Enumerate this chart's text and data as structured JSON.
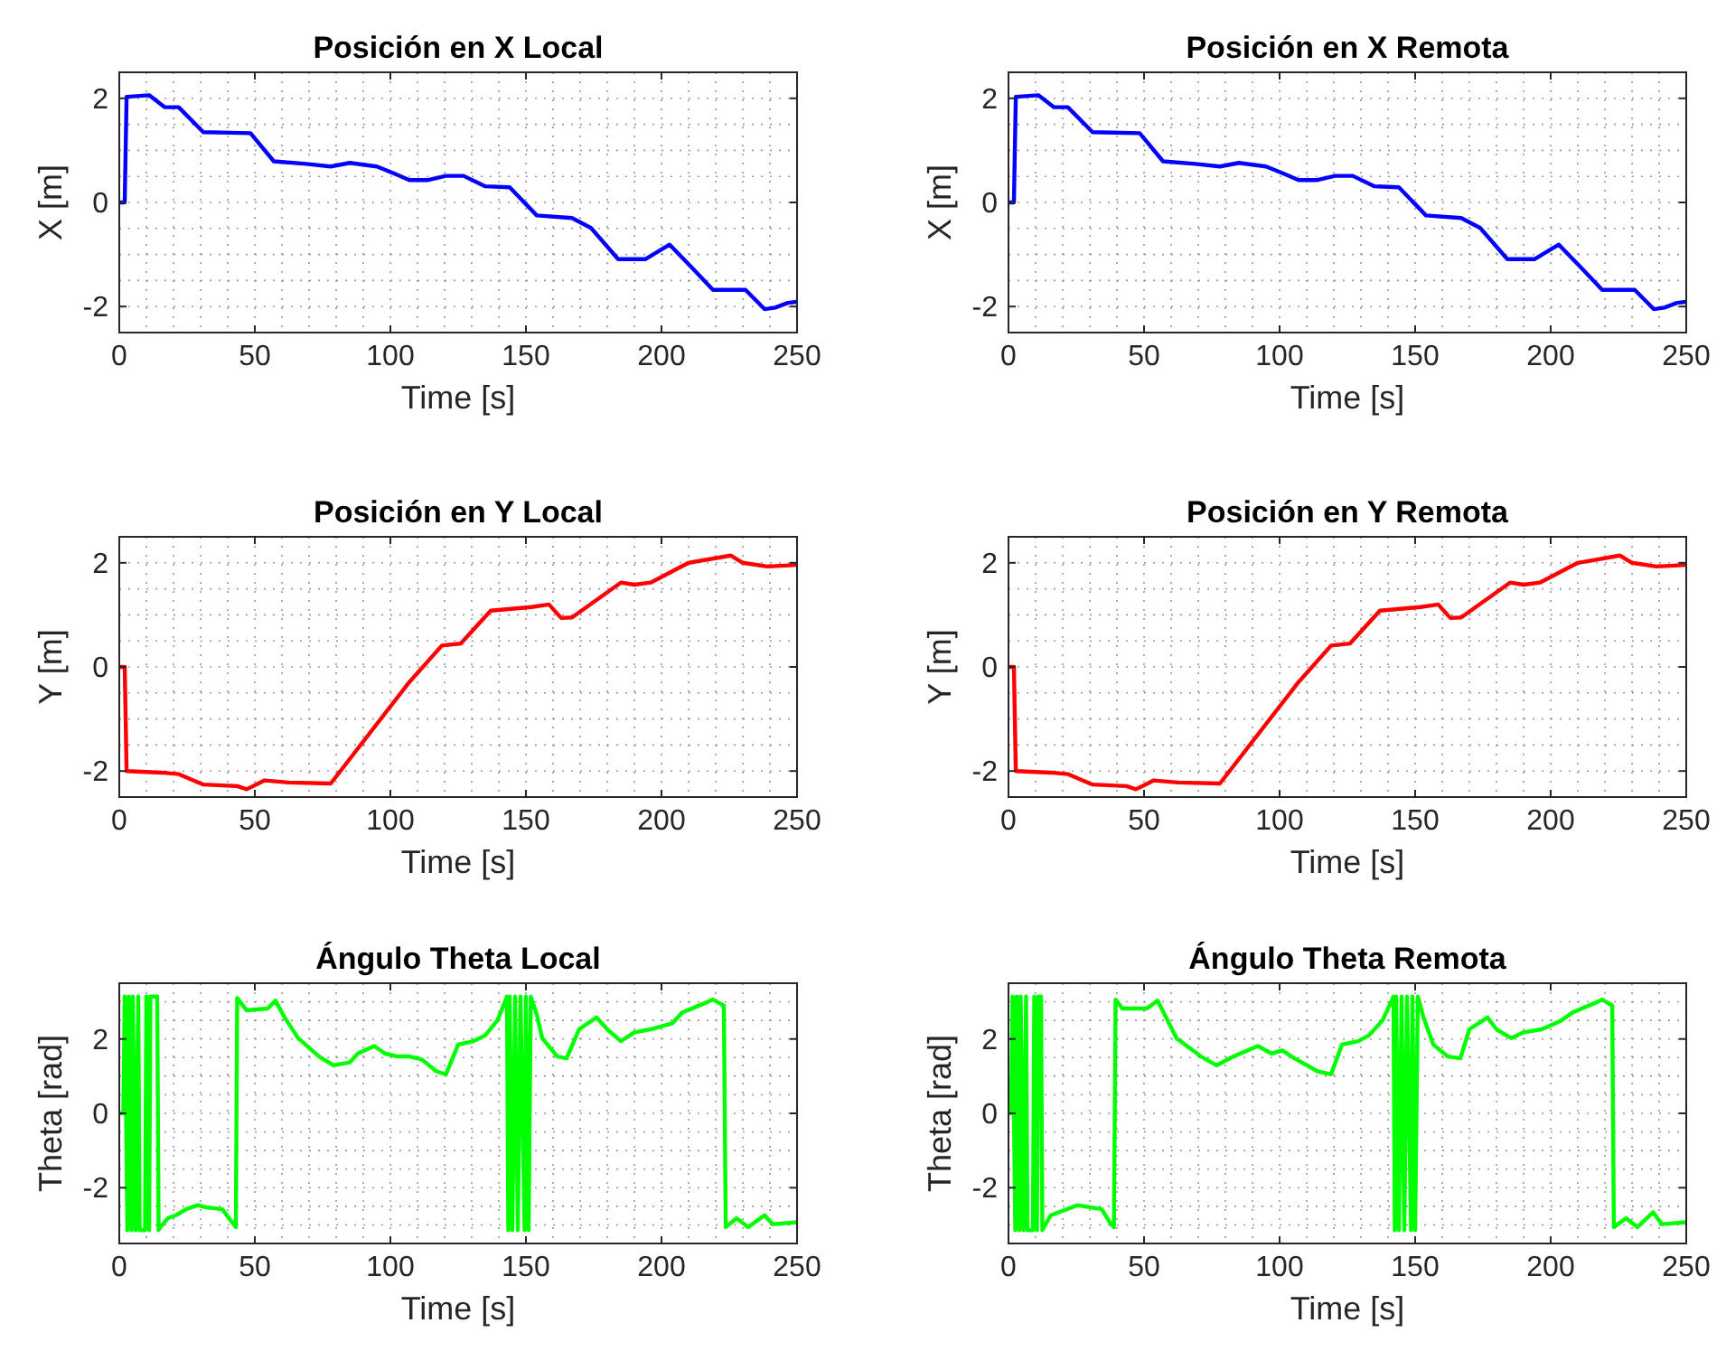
{
  "chart_data": [
    {
      "type": "line",
      "title": "Posición en X Local",
      "xlabel": "Time [s]",
      "ylabel": "X [m]",
      "xlim": [
        0,
        250
      ],
      "ylim": [
        -2.5,
        2.5
      ],
      "xticks": [
        0,
        50,
        100,
        150,
        200,
        250
      ],
      "yticks": [
        -2,
        0,
        2
      ],
      "grid": true,
      "series": [
        {
          "color": "#0000ff",
          "x": [
            0,
            2,
            2.7,
            11,
            16.7,
            21.9,
            31,
            48.4,
            57,
            69,
            78,
            85,
            95,
            101.6,
            107,
            114,
            120.5,
            127,
            135,
            144,
            154,
            167,
            174,
            184,
            194,
            203,
            211,
            219,
            231,
            238,
            242,
            246.6,
            250
          ],
          "values": [
            0,
            0,
            2.03,
            2.06,
            1.83,
            1.83,
            1.35,
            1.33,
            0.79,
            0.74,
            0.69,
            0.76,
            0.69,
            0.55,
            0.43,
            0.43,
            0.51,
            0.51,
            0.31,
            0.29,
            -0.25,
            -0.3,
            -0.49,
            -1.09,
            -1.09,
            -0.81,
            -1.24,
            -1.68,
            -1.68,
            -2.05,
            -2.02,
            -1.93,
            -1.91
          ]
        }
      ]
    },
    {
      "type": "line",
      "title": "Posición en X Remota",
      "xlabel": "Time [s]",
      "ylabel": "X [m]",
      "xlim": [
        0,
        250
      ],
      "ylim": [
        -2.5,
        2.5
      ],
      "xticks": [
        0,
        50,
        100,
        150,
        200,
        250
      ],
      "yticks": [
        -2,
        0,
        2
      ],
      "grid": true,
      "series": [
        {
          "color": "#0000ff",
          "x": [
            0,
            2,
            2.7,
            11,
            16.7,
            21.9,
            31,
            48.4,
            57,
            69,
            78,
            85,
            95,
            101.6,
            107,
            114,
            120.5,
            127,
            135,
            144,
            154,
            167,
            174,
            184,
            194,
            203,
            211,
            219,
            231,
            238,
            242,
            246.6,
            250
          ],
          "values": [
            0,
            0,
            2.03,
            2.06,
            1.83,
            1.83,
            1.35,
            1.33,
            0.79,
            0.74,
            0.69,
            0.76,
            0.69,
            0.55,
            0.43,
            0.43,
            0.51,
            0.51,
            0.31,
            0.29,
            -0.25,
            -0.3,
            -0.49,
            -1.09,
            -1.09,
            -0.81,
            -1.24,
            -1.68,
            -1.68,
            -2.05,
            -2.02,
            -1.93,
            -1.91
          ]
        }
      ]
    },
    {
      "type": "line",
      "title": "Posición en Y Local",
      "xlabel": "Time [s]",
      "ylabel": "Y [m]",
      "xlim": [
        0,
        250
      ],
      "ylim": [
        -2.5,
        2.5
      ],
      "xticks": [
        0,
        50,
        100,
        150,
        200,
        250
      ],
      "yticks": [
        -2,
        0,
        2
      ],
      "grid": true,
      "series": [
        {
          "color": "#ff0000",
          "x": [
            0,
            2,
            2.7,
            15.6,
            22,
            31,
            43.5,
            47,
            53.6,
            62.5,
            78,
            107,
            119,
            126,
            137,
            152,
            158.5,
            163,
            167,
            185,
            190,
            196,
            210,
            225.5,
            230,
            239,
            250
          ],
          "values": [
            0,
            0,
            -2.0,
            -2.03,
            -2.06,
            -2.26,
            -2.29,
            -2.35,
            -2.18,
            -2.22,
            -2.24,
            -0.29,
            0.41,
            0.45,
            1.08,
            1.15,
            1.2,
            0.94,
            0.95,
            1.62,
            1.58,
            1.62,
            2.0,
            2.14,
            2.0,
            1.93,
            1.96
          ]
        }
      ]
    },
    {
      "type": "line",
      "title": "Posición en Y Remota",
      "xlabel": "Time [s]",
      "ylabel": "Y [m]",
      "xlim": [
        0,
        250
      ],
      "ylim": [
        -2.5,
        2.5
      ],
      "xticks": [
        0,
        50,
        100,
        150,
        200,
        250
      ],
      "yticks": [
        -2,
        0,
        2
      ],
      "grid": true,
      "series": [
        {
          "color": "#ff0000",
          "x": [
            0,
            2,
            2.7,
            15.6,
            22,
            31,
            43.5,
            47,
            53.6,
            62.5,
            78,
            107,
            119,
            126,
            137,
            152,
            158.5,
            163,
            167,
            185,
            190,
            196,
            210,
            225.5,
            230,
            239,
            250
          ],
          "values": [
            0,
            0,
            -2.0,
            -2.03,
            -2.06,
            -2.26,
            -2.29,
            -2.35,
            -2.18,
            -2.22,
            -2.24,
            -0.29,
            0.41,
            0.45,
            1.08,
            1.15,
            1.2,
            0.94,
            0.95,
            1.62,
            1.58,
            1.62,
            2.0,
            2.14,
            2.0,
            1.93,
            1.96
          ]
        }
      ]
    },
    {
      "type": "line",
      "title": "Ángulo Theta Local",
      "xlabel": "Time [s]",
      "ylabel": "Theta [rad]",
      "xlim": [
        0,
        250
      ],
      "ylim": [
        -3.5,
        3.5
      ],
      "xticks": [
        0,
        50,
        100,
        150,
        200,
        250
      ],
      "yticks": [
        -2,
        0,
        2
      ],
      "grid": true,
      "series": [
        {
          "color": "#00ff00",
          "x": [
            0,
            1.5,
            2,
            3,
            3.5,
            4.5,
            5,
            6,
            7,
            7.5,
            9.5,
            10,
            11,
            11.5,
            14,
            14.5,
            15.2,
            17.9,
            21,
            24.6,
            29,
            32,
            38,
            41.3,
            43,
            43.5,
            47,
            54.7,
            57.6,
            61,
            66,
            73.7,
            79,
            85,
            88,
            94,
            98,
            102.7,
            107,
            111.6,
            117,
            120.5,
            125,
            130.6,
            135,
            139.5,
            143,
            143.5,
            144,
            145,
            146,
            147,
            148,
            149.5,
            150,
            151,
            151.8,
            154,
            156,
            161.6,
            165,
            169.6,
            176,
            180,
            185,
            190,
            196,
            204,
            207.6,
            216.5,
            219,
            223,
            223.7,
            227.7,
            232,
            238,
            241,
            250
          ],
          "values": [
            0,
            0,
            3.14,
            -3.14,
            3.14,
            -3.14,
            3.14,
            -3.14,
            3.14,
            -3.14,
            -3.14,
            3.14,
            -3.14,
            3.14,
            3.14,
            -3.14,
            -3.06,
            -2.82,
            -2.74,
            -2.58,
            -2.47,
            -2.53,
            -2.58,
            -2.9,
            -3.06,
            3.1,
            2.77,
            2.82,
            3.03,
            2.58,
            2.02,
            1.53,
            1.29,
            1.37,
            1.61,
            1.81,
            1.61,
            1.53,
            1.53,
            1.45,
            1.13,
            1.05,
            1.85,
            1.94,
            2.1,
            2.5,
            3.14,
            -3.14,
            3.14,
            -3.14,
            3.14,
            -3.14,
            3.14,
            -3.14,
            3.14,
            -3.14,
            3.14,
            2.66,
            2.02,
            1.53,
            1.48,
            2.26,
            2.58,
            2.26,
            1.94,
            2.18,
            2.26,
            2.42,
            2.71,
            2.98,
            3.06,
            2.9,
            -3.06,
            -2.82,
            -3.06,
            -2.74,
            -2.98,
            -2.93
          ]
        }
      ]
    },
    {
      "type": "line",
      "title": "Ángulo Theta Remota",
      "xlabel": "Time [s]",
      "ylabel": "Theta [rad]",
      "xlim": [
        0,
        250
      ],
      "ylim": [
        -3.5,
        3.5
      ],
      "xticks": [
        0,
        50,
        100,
        150,
        200,
        250
      ],
      "yticks": [
        -2,
        0,
        2
      ],
      "grid": true,
      "series": [
        {
          "color": "#00ff00",
          "x": [
            0,
            1,
            1.5,
            2.5,
            3,
            4,
            4.5,
            5.5,
            6.5,
            7,
            9,
            9.5,
            10.5,
            11,
            12,
            12.5,
            15.6,
            25.5,
            34.4,
            37.8,
            38.9,
            39.5,
            42,
            51,
            55,
            62,
            71,
            76.7,
            83,
            92,
            97,
            101,
            105.5,
            114,
            119,
            123,
            129,
            133,
            138,
            142,
            142.5,
            143,
            144,
            145,
            146,
            147,
            148.5,
            149,
            150,
            151,
            153,
            156.7,
            162,
            166.7,
            170,
            176.7,
            180,
            185.5,
            190,
            196.7,
            204,
            208,
            216.7,
            219,
            222.7,
            223.3,
            227.8,
            232,
            237.8,
            241,
            250
          ],
          "values": [
            0,
            0,
            3.14,
            -3.14,
            3.14,
            -3.14,
            3.14,
            -3.14,
            3.14,
            -3.14,
            -3.14,
            3.14,
            -3.14,
            3.14,
            3.14,
            -3.14,
            -2.74,
            -2.47,
            -2.58,
            -2.98,
            -3.06,
            3.06,
            2.82,
            2.82,
            3.03,
            2.02,
            1.53,
            1.29,
            1.53,
            1.81,
            1.61,
            1.69,
            1.48,
            1.13,
            1.05,
            1.85,
            1.94,
            2.1,
            2.5,
            3.14,
            -3.14,
            3.14,
            -3.14,
            3.14,
            -3.14,
            3.14,
            -3.14,
            3.14,
            -3.14,
            3.14,
            2.6,
            1.85,
            1.53,
            1.48,
            2.26,
            2.58,
            2.26,
            2.02,
            2.18,
            2.26,
            2.5,
            2.71,
            2.98,
            3.06,
            2.9,
            -3.06,
            -2.82,
            -3.06,
            -2.66,
            -2.98,
            -2.93
          ]
        }
      ]
    }
  ]
}
